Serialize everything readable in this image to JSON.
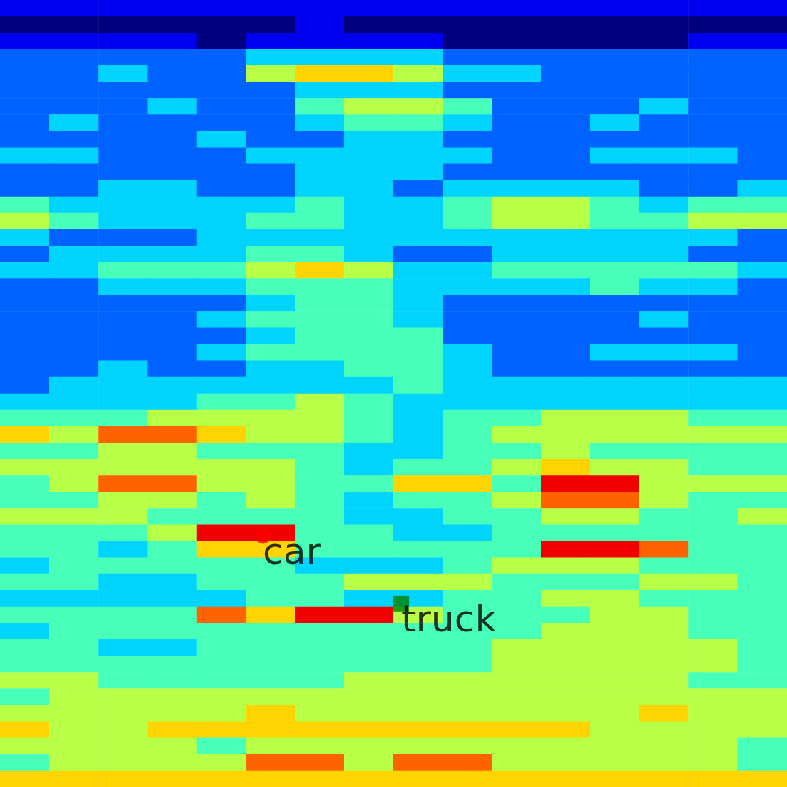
{
  "chart_data": {
    "type": "heatmap",
    "tick_labels": false,
    "zlim": [
      0,
      9
    ],
    "xlim": [
      0,
      100
    ],
    "ylim": [
      0,
      100
    ],
    "cells": [
      [
        1,
        1,
        1,
        1,
        1,
        1,
        1,
        1,
        1,
        1,
        1,
        1,
        1,
        1,
        1,
        1
      ],
      [
        0,
        0,
        0,
        0,
        0,
        0,
        1,
        0,
        0,
        0,
        0,
        0,
        0,
        0,
        0,
        0
      ],
      [
        1,
        1,
        1,
        1,
        0,
        1,
        1,
        1,
        1,
        0,
        0,
        0,
        0,
        0,
        1,
        1
      ],
      [
        2,
        2,
        2,
        2,
        2,
        3,
        3,
        3,
        3,
        2,
        2,
        2,
        2,
        2,
        2,
        2
      ],
      [
        2,
        2,
        3,
        2,
        2,
        5,
        6,
        6,
        5,
        3,
        3,
        2,
        2,
        2,
        2,
        2
      ],
      [
        2,
        2,
        2,
        2,
        2,
        2,
        3,
        3,
        3,
        2,
        2,
        2,
        2,
        2,
        2,
        2
      ],
      [
        2,
        2,
        2,
        3,
        2,
        2,
        4,
        5,
        5,
        4,
        2,
        2,
        2,
        3,
        2,
        2
      ],
      [
        2,
        3,
        2,
        2,
        2,
        2,
        3,
        4,
        4,
        3,
        2,
        2,
        3,
        2,
        2,
        2
      ],
      [
        2,
        2,
        2,
        2,
        3,
        2,
        2,
        3,
        3,
        2,
        2,
        2,
        2,
        2,
        2,
        2
      ],
      [
        3,
        3,
        2,
        2,
        2,
        3,
        3,
        3,
        3,
        3,
        2,
        2,
        3,
        3,
        3,
        2
      ],
      [
        2,
        2,
        2,
        2,
        2,
        2,
        3,
        3,
        3,
        2,
        2,
        2,
        2,
        2,
        2,
        2
      ],
      [
        2,
        2,
        3,
        3,
        2,
        2,
        3,
        3,
        2,
        3,
        3,
        3,
        3,
        2,
        2,
        3
      ],
      [
        4,
        3,
        3,
        3,
        3,
        3,
        4,
        3,
        3,
        4,
        5,
        5,
        4,
        3,
        4,
        4
      ],
      [
        5,
        4,
        3,
        3,
        3,
        4,
        4,
        3,
        3,
        4,
        5,
        5,
        4,
        4,
        5,
        5
      ],
      [
        3,
        2,
        2,
        2,
        3,
        3,
        3,
        3,
        3,
        3,
        3,
        3,
        3,
        3,
        3,
        2
      ],
      [
        2,
        3,
        3,
        3,
        3,
        4,
        4,
        3,
        2,
        2,
        3,
        3,
        3,
        3,
        2,
        2
      ],
      [
        3,
        3,
        4,
        4,
        4,
        5,
        6,
        5,
        3,
        3,
        4,
        4,
        4,
        4,
        4,
        3
      ],
      [
        2,
        2,
        3,
        3,
        3,
        4,
        4,
        4,
        3,
        3,
        3,
        3,
        4,
        3,
        3,
        2
      ],
      [
        2,
        2,
        2,
        2,
        2,
        3,
        4,
        4,
        3,
        2,
        2,
        2,
        2,
        2,
        2,
        2
      ],
      [
        2,
        2,
        2,
        2,
        3,
        4,
        4,
        4,
        3,
        2,
        2,
        2,
        2,
        3,
        2,
        2
      ],
      [
        2,
        2,
        2,
        2,
        2,
        3,
        4,
        4,
        4,
        2,
        2,
        2,
        2,
        2,
        2,
        2
      ],
      [
        2,
        2,
        2,
        2,
        3,
        4,
        4,
        4,
        4,
        3,
        2,
        2,
        3,
        3,
        3,
        2
      ],
      [
        2,
        2,
        3,
        2,
        2,
        3,
        3,
        4,
        4,
        3,
        2,
        2,
        2,
        2,
        2,
        2
      ],
      [
        2,
        3,
        3,
        3,
        3,
        3,
        3,
        3,
        4,
        3,
        3,
        3,
        3,
        3,
        3,
        3
      ],
      [
        3,
        3,
        3,
        3,
        4,
        4,
        5,
        4,
        3,
        3,
        3,
        3,
        3,
        3,
        3,
        3
      ],
      [
        4,
        4,
        4,
        5,
        5,
        5,
        5,
        4,
        3,
        4,
        4,
        5,
        5,
        5,
        4,
        4
      ],
      [
        6,
        5,
        7,
        7,
        6,
        5,
        5,
        4,
        3,
        4,
        5,
        5,
        5,
        5,
        5,
        5
      ],
      [
        4,
        4,
        5,
        5,
        4,
        4,
        4,
        3,
        3,
        4,
        4,
        5,
        4,
        4,
        4,
        4
      ],
      [
        5,
        5,
        5,
        5,
        5,
        5,
        4,
        3,
        4,
        4,
        5,
        6,
        5,
        5,
        4,
        4
      ],
      [
        4,
        5,
        7,
        7,
        5,
        5,
        4,
        4,
        6,
        6,
        4,
        8,
        8,
        5,
        5,
        5
      ],
      [
        4,
        4,
        5,
        5,
        4,
        5,
        4,
        3,
        4,
        4,
        5,
        7,
        7,
        5,
        4,
        4
      ],
      [
        5,
        5,
        5,
        4,
        4,
        4,
        4,
        3,
        3,
        4,
        4,
        5,
        5,
        4,
        4,
        5
      ],
      [
        4,
        4,
        4,
        5,
        8,
        8,
        4,
        4,
        3,
        3,
        4,
        4,
        4,
        4,
        4,
        4
      ],
      [
        4,
        4,
        3,
        4,
        6,
        6,
        4,
        4,
        4,
        4,
        4,
        8,
        8,
        7,
        4,
        4
      ],
      [
        3,
        4,
        4,
        4,
        4,
        4,
        3,
        3,
        3,
        4,
        5,
        5,
        5,
        4,
        4,
        4
      ],
      [
        4,
        4,
        3,
        3,
        4,
        4,
        4,
        5,
        5,
        5,
        4,
        4,
        4,
        5,
        5,
        4
      ],
      [
        3,
        3,
        3,
        3,
        3,
        4,
        4,
        3,
        3,
        4,
        4,
        5,
        5,
        4,
        4,
        4
      ],
      [
        4,
        4,
        4,
        4,
        7,
        6,
        8,
        8,
        5,
        4,
        4,
        4,
        5,
        5,
        4,
        4
      ],
      [
        3,
        4,
        4,
        4,
        4,
        4,
        4,
        4,
        4,
        4,
        4,
        5,
        5,
        5,
        4,
        4
      ],
      [
        4,
        4,
        3,
        3,
        4,
        4,
        4,
        4,
        4,
        4,
        5,
        5,
        5,
        5,
        5,
        4
      ],
      [
        4,
        4,
        4,
        4,
        4,
        4,
        4,
        4,
        4,
        4,
        5,
        5,
        5,
        5,
        5,
        4
      ],
      [
        5,
        5,
        4,
        4,
        4,
        4,
        4,
        5,
        5,
        5,
        5,
        5,
        5,
        5,
        4,
        4
      ],
      [
        4,
        5,
        5,
        5,
        5,
        5,
        5,
        5,
        5,
        5,
        5,
        5,
        5,
        5,
        5,
        5
      ],
      [
        5,
        5,
        5,
        5,
        5,
        6,
        5,
        5,
        5,
        5,
        5,
        5,
        5,
        6,
        5,
        5
      ],
      [
        6,
        5,
        5,
        6,
        6,
        6,
        6,
        6,
        6,
        6,
        6,
        6,
        5,
        5,
        5,
        5
      ],
      [
        5,
        5,
        5,
        5,
        4,
        5,
        5,
        5,
        5,
        5,
        5,
        5,
        5,
        5,
        5,
        4
      ],
      [
        4,
        5,
        5,
        5,
        5,
        7,
        7,
        5,
        7,
        7,
        5,
        5,
        5,
        5,
        5,
        4
      ],
      [
        6,
        6,
        6,
        6,
        6,
        6,
        6,
        6,
        6,
        6,
        6,
        6,
        6,
        6,
        6,
        6
      ]
    ],
    "annotations": [
      {
        "text": "car",
        "x": 33.4,
        "y": 31.9,
        "color": "#ff0000",
        "marker": "circle"
      },
      {
        "text": "truck",
        "x": 51.0,
        "y": 23.3,
        "color": "#008000",
        "marker": "square"
      }
    ]
  }
}
